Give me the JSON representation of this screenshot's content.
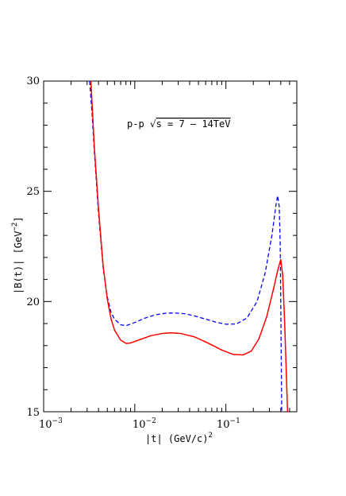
{
  "chart_data": {
    "type": "line",
    "xscale": "log",
    "xlim": [
      0.001,
      0.6
    ],
    "ylim": [
      15,
      30
    ],
    "x_tick_labels": [
      {
        "value": 0.001,
        "base": "10",
        "exp": "−3"
      },
      {
        "value": 0.01,
        "base": "10",
        "exp": "−2"
      },
      {
        "value": 0.1,
        "base": "10",
        "exp": "−1"
      }
    ],
    "y_ticks": [
      15,
      20,
      25,
      30
    ],
    "xlabel": {
      "main": "|t|  (GeV/c)",
      "sup": "2"
    },
    "ylabel": {
      "main": "|B(t)|  [GeV",
      "sup": "−2",
      "close": "]"
    },
    "annotation": {
      "left": "p-p  ",
      "sqrt": "√",
      "right": "s = 7 – 14TeV"
    },
    "grid": false,
    "legend": "none",
    "series": [
      {
        "color": "#0000ff",
        "dash": true,
        "points": [
          [
            0.0032,
            30.0
          ],
          [
            0.0034,
            28.5
          ],
          [
            0.0036,
            26.8
          ],
          [
            0.004,
            24.0
          ],
          [
            0.0045,
            21.5
          ],
          [
            0.005,
            20.2
          ],
          [
            0.0055,
            19.5
          ],
          [
            0.006,
            19.2
          ],
          [
            0.007,
            18.95
          ],
          [
            0.008,
            18.9
          ],
          [
            0.01,
            19.05
          ],
          [
            0.013,
            19.25
          ],
          [
            0.017,
            19.4
          ],
          [
            0.022,
            19.47
          ],
          [
            0.027,
            19.48
          ],
          [
            0.035,
            19.45
          ],
          [
            0.045,
            19.35
          ],
          [
            0.06,
            19.2
          ],
          [
            0.08,
            19.05
          ],
          [
            0.1,
            18.97
          ],
          [
            0.13,
            18.98
          ],
          [
            0.17,
            19.25
          ],
          [
            0.22,
            20.0
          ],
          [
            0.27,
            21.3
          ],
          [
            0.32,
            23.0
          ],
          [
            0.355,
            24.4
          ],
          [
            0.37,
            24.8
          ],
          [
            0.385,
            24.3
          ],
          [
            0.395,
            22.5
          ],
          [
            0.4,
            20.0
          ],
          [
            0.405,
            17.5
          ],
          [
            0.41,
            15.0
          ]
        ]
      },
      {
        "color": "#ff0000",
        "dash": false,
        "points": [
          [
            0.0033,
            30.0
          ],
          [
            0.0036,
            27.0
          ],
          [
            0.004,
            24.2
          ],
          [
            0.0045,
            21.6
          ],
          [
            0.005,
            20.1
          ],
          [
            0.0055,
            19.2
          ],
          [
            0.006,
            18.7
          ],
          [
            0.007,
            18.25
          ],
          [
            0.008,
            18.1
          ],
          [
            0.009,
            18.12
          ],
          [
            0.011,
            18.25
          ],
          [
            0.015,
            18.45
          ],
          [
            0.02,
            18.55
          ],
          [
            0.025,
            18.58
          ],
          [
            0.032,
            18.55
          ],
          [
            0.045,
            18.4
          ],
          [
            0.065,
            18.1
          ],
          [
            0.09,
            17.8
          ],
          [
            0.12,
            17.6
          ],
          [
            0.155,
            17.58
          ],
          [
            0.19,
            17.75
          ],
          [
            0.23,
            18.3
          ],
          [
            0.28,
            19.3
          ],
          [
            0.33,
            20.5
          ],
          [
            0.37,
            21.4
          ],
          [
            0.4,
            21.9
          ],
          [
            0.42,
            21.2
          ],
          [
            0.44,
            19.2
          ],
          [
            0.46,
            16.8
          ],
          [
            0.475,
            15.0
          ]
        ]
      }
    ]
  }
}
